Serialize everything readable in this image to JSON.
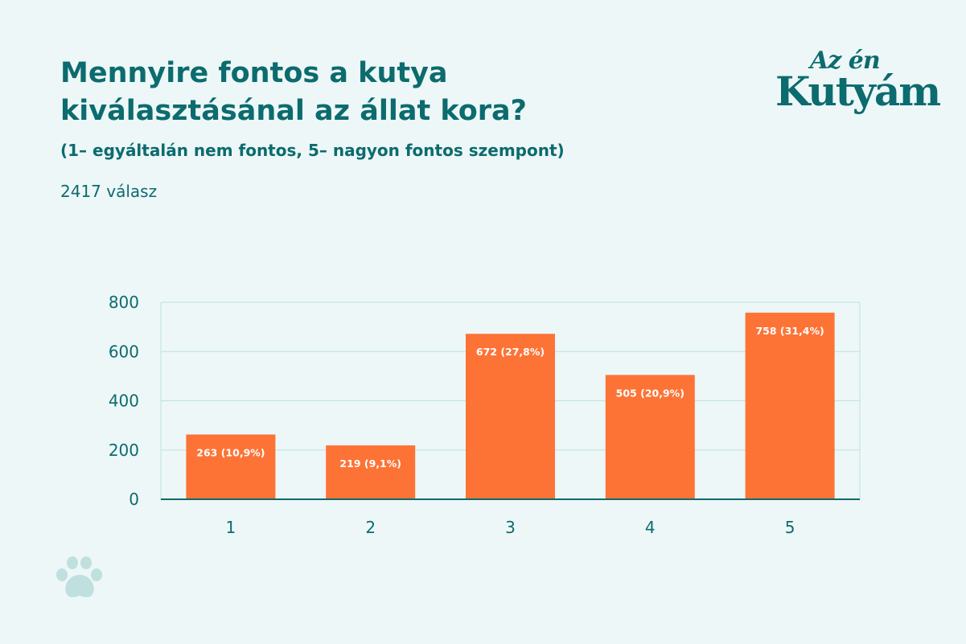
{
  "title_line1": "Mennyire fontos a kutya",
  "title_line2": "kiválasztásánal az állat kora?",
  "subtitle": "(1– egyáltalán nem fontos, 5– nagyon fontos szempont)",
  "responses": "2417 válasz",
  "logo": {
    "line1": "Az én",
    "line2": "Kutyám"
  },
  "colors": {
    "bar": "#fd7336",
    "text": "#0c6b6e",
    "background": "#edf7f7",
    "grid": "#bfe0df"
  },
  "icons": {
    "paw": "paw-icon"
  },
  "chart_data": {
    "type": "bar",
    "categories": [
      "1",
      "2",
      "3",
      "4",
      "5"
    ],
    "values": [
      263,
      219,
      672,
      505,
      758
    ],
    "data_labels": [
      "263 (10,9%)",
      "219 (9,1%)",
      "672 (27,8%)",
      "505 (20,9%)",
      "758 (31,4%)"
    ],
    "yticks": [
      "0",
      "200",
      "400",
      "600",
      "800"
    ],
    "ylim": [
      0,
      800
    ],
    "grid": true,
    "xlabel": "",
    "ylabel": ""
  }
}
